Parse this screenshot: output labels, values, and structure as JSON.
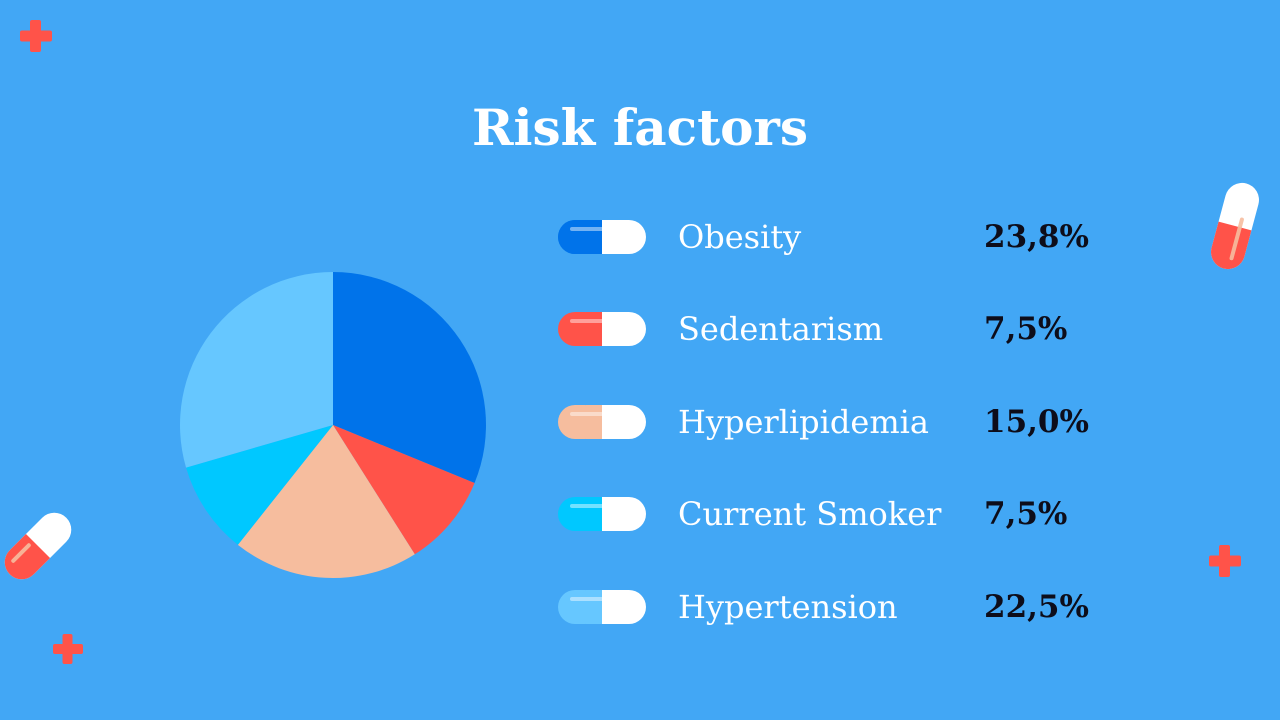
{
  "slide": {
    "title": "Risk factors"
  },
  "colors": {
    "background": "#42a7f5",
    "cross": "#ff5349",
    "pill_white": "#ffffff"
  },
  "chart_data": {
    "type": "pie",
    "title": "Risk factors",
    "series": [
      {
        "name": "Obesity",
        "value": 23.8,
        "label": "23,8%",
        "color": "#0073ea"
      },
      {
        "name": "Sedentarism",
        "value": 7.5,
        "label": "7,5%",
        "color": "#ff5349"
      },
      {
        "name": "Hyperlipidemia",
        "value": 15.0,
        "label": "15,0%",
        "color": "#f6bd9e"
      },
      {
        "name": "Current Smoker",
        "value": 7.5,
        "label": "7,5%",
        "color": "#00c8ff"
      },
      {
        "name": "Hypertension",
        "value": 22.5,
        "label": "22,5%",
        "color": "#66c7ff"
      }
    ],
    "legend_position": "right"
  },
  "decorations": {
    "cross_icons": [
      "cross-icon",
      "cross-icon",
      "cross-icon"
    ],
    "capsule_icons": [
      "capsule-icon",
      "capsule-icon"
    ]
  }
}
